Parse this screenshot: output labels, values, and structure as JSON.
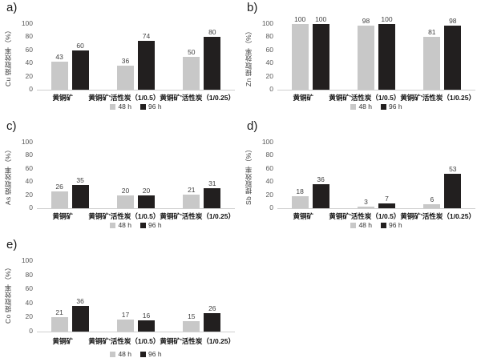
{
  "page": {
    "background": "#ffffff"
  },
  "colors": {
    "series_48h": "#c8c8c8",
    "series_96h": "#221f1f",
    "axis_line": "#cfcfcf",
    "tick_text": "#595959"
  },
  "chart_data": [
    {
      "type": "bar",
      "panel": "a)",
      "element": "Cu",
      "ylabel": "Cu 提取效率（%）",
      "categories": [
        "黄铜矿",
        "黄铜矿'活性炭（1/0.5）",
        "黄铜矿'活性炭（1/0.25）"
      ],
      "series": [
        {
          "name": "48 h",
          "color": "#c8c8c8",
          "values": [
            43,
            36,
            50
          ]
        },
        {
          "name": "96 h",
          "color": "#221f1f",
          "values": [
            60,
            74,
            80
          ]
        }
      ],
      "ylim": [
        0,
        100
      ],
      "yticks": [
        0,
        20,
        40,
        60,
        80,
        100
      ],
      "grid": false,
      "legend_position": "bottom"
    },
    {
      "type": "bar",
      "panel": "b)",
      "element": "Zn",
      "ylabel": "Zn 提取效率（%）",
      "categories": [
        "黄铜矿",
        "黄铜矿'活性炭（1/0.5）",
        "黄铜矿'活性炭（1/0.25）"
      ],
      "series": [
        {
          "name": "48 h",
          "color": "#c8c8c8",
          "values": [
            100,
            98,
            81
          ]
        },
        {
          "name": "96 h",
          "color": "#221f1f",
          "values": [
            100,
            100,
            98
          ]
        }
      ],
      "ylim": [
        0,
        100
      ],
      "yticks": [
        0,
        20,
        40,
        60,
        80,
        100
      ],
      "grid": false,
      "legend_position": "bottom"
    },
    {
      "type": "bar",
      "panel": "c)",
      "element": "As",
      "ylabel": "As 提取效率（%）",
      "categories": [
        "黄铜矿",
        "黄铜矿'活性炭（1/0.5）",
        "黄铜矿'活性炭（1/0.25）"
      ],
      "series": [
        {
          "name": "48 h",
          "color": "#c8c8c8",
          "values": [
            26,
            20,
            21
          ]
        },
        {
          "name": "96 h",
          "color": "#221f1f",
          "values": [
            35,
            20,
            31
          ]
        }
      ],
      "ylim": [
        0,
        100
      ],
      "yticks": [
        0,
        20,
        40,
        60,
        80,
        100
      ],
      "grid": false,
      "legend_position": "bottom"
    },
    {
      "type": "bar",
      "panel": "d)",
      "element": "Sb",
      "ylabel": "Sb 提取效率（%）",
      "categories": [
        "黄铜矿",
        "黄铜矿'活性炭（1/0.5）",
        "黄铜矿'活性炭（1/0.25）"
      ],
      "series": [
        {
          "name": "48 h",
          "color": "#c8c8c8",
          "values": [
            18,
            3,
            6
          ]
        },
        {
          "name": "96 h",
          "color": "#221f1f",
          "values": [
            36,
            7,
            53
          ]
        }
      ],
      "ylim": [
        0,
        100
      ],
      "yticks": [
        0,
        20,
        40,
        60,
        80,
        100
      ],
      "grid": false,
      "legend_position": "bottom"
    },
    {
      "type": "bar",
      "panel": "e)",
      "element": "Co",
      "ylabel": "Co 提取效率（%）",
      "categories": [
        "黄铜矿",
        "黄铜矿'活性炭（1/0.5）",
        "黄铜矿'活性炭（1/0.25）"
      ],
      "series": [
        {
          "name": "48 h",
          "color": "#c8c8c8",
          "values": [
            21,
            17,
            15
          ]
        },
        {
          "name": "96 h",
          "color": "#221f1f",
          "values": [
            36,
            16,
            26
          ]
        }
      ],
      "ylim": [
        0,
        100
      ],
      "yticks": [
        0,
        20,
        40,
        60,
        80,
        100
      ],
      "grid": false,
      "legend_position": "bottom"
    }
  ]
}
